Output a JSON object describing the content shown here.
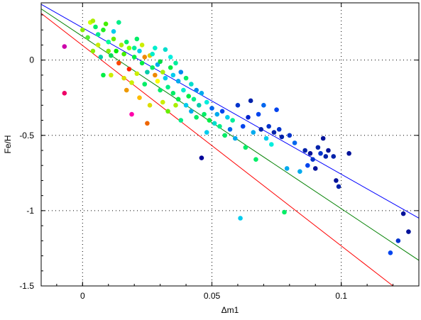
{
  "chart_data": {
    "type": "scatter",
    "xlabel": "Δm1",
    "ylabel": "Fe/H",
    "xlim": [
      -0.016,
      0.13
    ],
    "ylim": [
      -1.5,
      0.38
    ],
    "grid": "dotted",
    "x_ticks": [
      0,
      0.05,
      0.1
    ],
    "x_tick_labels": [
      "0",
      "0.05",
      "0.1"
    ],
    "y_ticks": [
      0,
      -0.5,
      -1,
      -1.5
    ],
    "y_tick_labels": [
      "0",
      "-0.5",
      "-1",
      "-1.5"
    ],
    "lines": [
      {
        "color": "#0000ff",
        "x": [
          -0.016,
          0.13
        ],
        "y": [
          0.37,
          -1.05
        ]
      },
      {
        "color": "#008000",
        "x": [
          -0.016,
          0.13
        ],
        "y": [
          0.34,
          -1.33
        ]
      },
      {
        "color": "#ff0000",
        "x": [
          -0.016,
          0.12
        ],
        "y": [
          0.31,
          -1.5
        ]
      }
    ],
    "points": [
      {
        "x": -0.007,
        "y": 0.09,
        "c": "#cc00aa"
      },
      {
        "x": -0.007,
        "y": -0.22,
        "c": "#ee0066"
      },
      {
        "x": 0.0,
        "y": 0.2,
        "c": "#88ee00"
      },
      {
        "x": 0.002,
        "y": 0.15,
        "c": "#55ee33"
      },
      {
        "x": 0.003,
        "y": 0.25,
        "c": "#ccff00"
      },
      {
        "x": 0.004,
        "y": 0.26,
        "c": "#aaee00"
      },
      {
        "x": 0.004,
        "y": 0.06,
        "c": "#88ee00"
      },
      {
        "x": 0.005,
        "y": 0.22,
        "c": "#00ee66"
      },
      {
        "x": 0.006,
        "y": 0.1,
        "c": "#ccee00"
      },
      {
        "x": 0.006,
        "y": 0.17,
        "c": "#00ee88"
      },
      {
        "x": 0.007,
        "y": 0.02,
        "c": "#00ccaa"
      },
      {
        "x": 0.008,
        "y": -0.1,
        "c": "#00ee44"
      },
      {
        "x": 0.008,
        "y": 0.2,
        "c": "#22ee22"
      },
      {
        "x": 0.009,
        "y": 0.24,
        "c": "#44ee00"
      },
      {
        "x": 0.01,
        "y": 0.12,
        "c": "#00ff99"
      },
      {
        "x": 0.01,
        "y": 0.06,
        "c": "#88ee00"
      },
      {
        "x": 0.011,
        "y": -0.1,
        "c": "#ccee00"
      },
      {
        "x": 0.011,
        "y": 0.03,
        "c": "#00dd55"
      },
      {
        "x": 0.012,
        "y": 0.14,
        "c": "#66ee00"
      },
      {
        "x": 0.012,
        "y": 0.19,
        "c": "#00ccee"
      },
      {
        "x": 0.013,
        "y": 0.06,
        "c": "#00ee00"
      },
      {
        "x": 0.014,
        "y": -0.02,
        "c": "#ff4400"
      },
      {
        "x": 0.014,
        "y": 0.25,
        "c": "#00ee88"
      },
      {
        "x": 0.015,
        "y": 0.1,
        "c": "#aaee00"
      },
      {
        "x": 0.016,
        "y": -0.12,
        "c": "#dddd00"
      },
      {
        "x": 0.016,
        "y": 0.04,
        "c": "#44ee00"
      },
      {
        "x": 0.017,
        "y": -0.2,
        "c": "#ee9900"
      },
      {
        "x": 0.017,
        "y": 0.12,
        "c": "#00ee66"
      },
      {
        "x": 0.018,
        "y": -0.06,
        "c": "#ff2200"
      },
      {
        "x": 0.018,
        "y": 0.08,
        "c": "#88ff00"
      },
      {
        "x": 0.019,
        "y": -0.15,
        "c": "#ccee00"
      },
      {
        "x": 0.019,
        "y": -0.36,
        "c": "#ff00aa"
      },
      {
        "x": 0.02,
        "y": 0.02,
        "c": "#00ee44"
      },
      {
        "x": 0.02,
        "y": 0.08,
        "c": "#00ee99"
      },
      {
        "x": 0.021,
        "y": -0.09,
        "c": "#ccee00"
      },
      {
        "x": 0.021,
        "y": 0.14,
        "c": "#00ee66"
      },
      {
        "x": 0.022,
        "y": -0.25,
        "c": "#ffbb00"
      },
      {
        "x": 0.022,
        "y": 0.06,
        "c": "#00ccee"
      },
      {
        "x": 0.023,
        "y": -0.02,
        "c": "#00ee44"
      },
      {
        "x": 0.023,
        "y": 0.1,
        "c": "#ccee00"
      },
      {
        "x": 0.024,
        "y": -0.16,
        "c": "#00ee66"
      },
      {
        "x": 0.024,
        "y": 0.02,
        "c": "#ee8800"
      },
      {
        "x": 0.025,
        "y": -0.08,
        "c": "#00ccaa"
      },
      {
        "x": 0.025,
        "y": -0.42,
        "c": "#ee6600"
      },
      {
        "x": 0.026,
        "y": 0.03,
        "c": "#ddcc00"
      },
      {
        "x": 0.026,
        "y": -0.3,
        "c": "#dddd00"
      },
      {
        "x": 0.027,
        "y": -0.05,
        "c": "#00ee66"
      },
      {
        "x": 0.027,
        "y": 0.04,
        "c": "#00eecc"
      },
      {
        "x": 0.028,
        "y": -0.1,
        "c": "#ee8800"
      },
      {
        "x": 0.028,
        "y": 0.08,
        "c": "#00eecc"
      },
      {
        "x": 0.029,
        "y": -0.14,
        "c": "#ffff00"
      },
      {
        "x": 0.029,
        "y": -0.03,
        "c": "#00aaee"
      },
      {
        "x": 0.03,
        "y": -0.2,
        "c": "#00ee66"
      },
      {
        "x": 0.03,
        "y": -0.01,
        "c": "#00dd44"
      },
      {
        "x": 0.031,
        "y": -0.08,
        "c": "#aaee00"
      },
      {
        "x": 0.031,
        "y": -0.28,
        "c": "#ccee00"
      },
      {
        "x": 0.032,
        "y": 0.07,
        "c": "#00ddcc"
      },
      {
        "x": 0.032,
        "y": -0.12,
        "c": "#00ccee"
      },
      {
        "x": 0.033,
        "y": -0.18,
        "c": "#00ee88"
      },
      {
        "x": 0.033,
        "y": -0.34,
        "c": "#66ee00"
      },
      {
        "x": 0.034,
        "y": -0.05,
        "c": "#00ee44"
      },
      {
        "x": 0.034,
        "y": 0.02,
        "c": "#00eedd"
      },
      {
        "x": 0.035,
        "y": -0.1,
        "c": "#00ccee"
      },
      {
        "x": 0.035,
        "y": -0.22,
        "c": "#00ee66"
      },
      {
        "x": 0.036,
        "y": -0.02,
        "c": "#00ee99"
      },
      {
        "x": 0.036,
        "y": -0.3,
        "c": "#aaee00"
      },
      {
        "x": 0.037,
        "y": -0.14,
        "c": "#00aaee"
      },
      {
        "x": 0.037,
        "y": -0.26,
        "c": "#00ee44"
      },
      {
        "x": 0.038,
        "y": -0.08,
        "c": "#0088ee"
      },
      {
        "x": 0.038,
        "y": -0.4,
        "c": "#00ee88"
      },
      {
        "x": 0.039,
        "y": -0.2,
        "c": "#00eecc"
      },
      {
        "x": 0.04,
        "y": -0.12,
        "c": "#00ee66"
      },
      {
        "x": 0.04,
        "y": -0.3,
        "c": "#00ccee"
      },
      {
        "x": 0.041,
        "y": -0.24,
        "c": "#00ee44"
      },
      {
        "x": 0.042,
        "y": -0.16,
        "c": "#00ddcc"
      },
      {
        "x": 0.042,
        "y": -0.34,
        "c": "#00aaee"
      },
      {
        "x": 0.043,
        "y": -0.26,
        "c": "#00ee88"
      },
      {
        "x": 0.044,
        "y": -0.2,
        "c": "#0088ee"
      },
      {
        "x": 0.044,
        "y": -0.38,
        "c": "#00ee66"
      },
      {
        "x": 0.045,
        "y": -0.3,
        "c": "#00ccaa"
      },
      {
        "x": 0.046,
        "y": -0.22,
        "c": "#00aaee"
      },
      {
        "x": 0.046,
        "y": -0.65,
        "c": "#000099"
      },
      {
        "x": 0.047,
        "y": -0.36,
        "c": "#00ee66"
      },
      {
        "x": 0.048,
        "y": -0.28,
        "c": "#00eedd"
      },
      {
        "x": 0.048,
        "y": -0.48,
        "c": "#00ccee"
      },
      {
        "x": 0.049,
        "y": -0.4,
        "c": "#00ee44"
      },
      {
        "x": 0.05,
        "y": -0.32,
        "c": "#0066ee"
      },
      {
        "x": 0.051,
        "y": -0.42,
        "c": "#00ddcc"
      },
      {
        "x": 0.052,
        "y": -0.36,
        "c": "#00aaee"
      },
      {
        "x": 0.053,
        "y": -0.44,
        "c": "#00ee88"
      },
      {
        "x": 0.054,
        "y": -0.34,
        "c": "#0044ee"
      },
      {
        "x": 0.055,
        "y": -0.5,
        "c": "#00ee66"
      },
      {
        "x": 0.056,
        "y": -0.38,
        "c": "#00ccee"
      },
      {
        "x": 0.057,
        "y": -0.46,
        "c": "#0066ee"
      },
      {
        "x": 0.058,
        "y": -0.4,
        "c": "#00ee99"
      },
      {
        "x": 0.059,
        "y": -0.52,
        "c": "#00aaee"
      },
      {
        "x": 0.06,
        "y": -0.3,
        "c": "#0033cc"
      },
      {
        "x": 0.061,
        "y": -1.05,
        "c": "#00ccee"
      },
      {
        "x": 0.062,
        "y": -0.44,
        "c": "#0044ee"
      },
      {
        "x": 0.063,
        "y": -0.58,
        "c": "#00ee66"
      },
      {
        "x": 0.064,
        "y": -0.38,
        "c": "#0022cc"
      },
      {
        "x": 0.065,
        "y": -0.27,
        "c": "#0022aa"
      },
      {
        "x": 0.066,
        "y": -0.48,
        "c": "#00aaee"
      },
      {
        "x": 0.067,
        "y": -0.66,
        "c": "#00ee66"
      },
      {
        "x": 0.068,
        "y": -0.36,
        "c": "#0044ee"
      },
      {
        "x": 0.069,
        "y": -0.46,
        "c": "#0022aa"
      },
      {
        "x": 0.07,
        "y": -0.3,
        "c": "#0066ee"
      },
      {
        "x": 0.071,
        "y": -0.52,
        "c": "#00ccee"
      },
      {
        "x": 0.072,
        "y": -0.44,
        "c": "#0033cc"
      },
      {
        "x": 0.073,
        "y": -0.56,
        "c": "#00eedd"
      },
      {
        "x": 0.074,
        "y": -0.48,
        "c": "#0022aa"
      },
      {
        "x": 0.075,
        "y": -0.33,
        "c": "#0044ee"
      },
      {
        "x": 0.076,
        "y": -0.46,
        "c": "#0033cc"
      },
      {
        "x": 0.077,
        "y": -0.51,
        "c": "#0022aa"
      },
      {
        "x": 0.078,
        "y": -1.01,
        "c": "#00ee66"
      },
      {
        "x": 0.079,
        "y": -0.72,
        "c": "#00aaee"
      },
      {
        "x": 0.08,
        "y": -0.5,
        "c": "#0033cc"
      },
      {
        "x": 0.082,
        "y": -0.55,
        "c": "#0066ee"
      },
      {
        "x": 0.084,
        "y": -0.74,
        "c": "#00aaee"
      },
      {
        "x": 0.086,
        "y": -0.6,
        "c": "#0022aa"
      },
      {
        "x": 0.087,
        "y": -0.7,
        "c": "#0044ee"
      },
      {
        "x": 0.088,
        "y": -0.62,
        "c": "#001199"
      },
      {
        "x": 0.089,
        "y": -0.66,
        "c": "#0033cc"
      },
      {
        "x": 0.09,
        "y": -0.72,
        "c": "#001199"
      },
      {
        "x": 0.091,
        "y": -0.58,
        "c": "#0022aa"
      },
      {
        "x": 0.092,
        "y": -0.62,
        "c": "#0033cc"
      },
      {
        "x": 0.093,
        "y": -0.52,
        "c": "#001199"
      },
      {
        "x": 0.094,
        "y": -0.64,
        "c": "#0022aa"
      },
      {
        "x": 0.095,
        "y": -0.6,
        "c": "#001199"
      },
      {
        "x": 0.097,
        "y": -0.64,
        "c": "#0022aa"
      },
      {
        "x": 0.098,
        "y": -0.8,
        "c": "#001199"
      },
      {
        "x": 0.099,
        "y": -0.84,
        "c": "#0022aa"
      },
      {
        "x": 0.103,
        "y": -0.62,
        "c": "#001199"
      },
      {
        "x": 0.119,
        "y": -1.28,
        "c": "#0044ee"
      },
      {
        "x": 0.122,
        "y": -1.2,
        "c": "#0033cc"
      },
      {
        "x": 0.124,
        "y": -1.02,
        "c": "#001199"
      },
      {
        "x": 0.126,
        "y": -1.14,
        "c": "#001199"
      }
    ]
  }
}
